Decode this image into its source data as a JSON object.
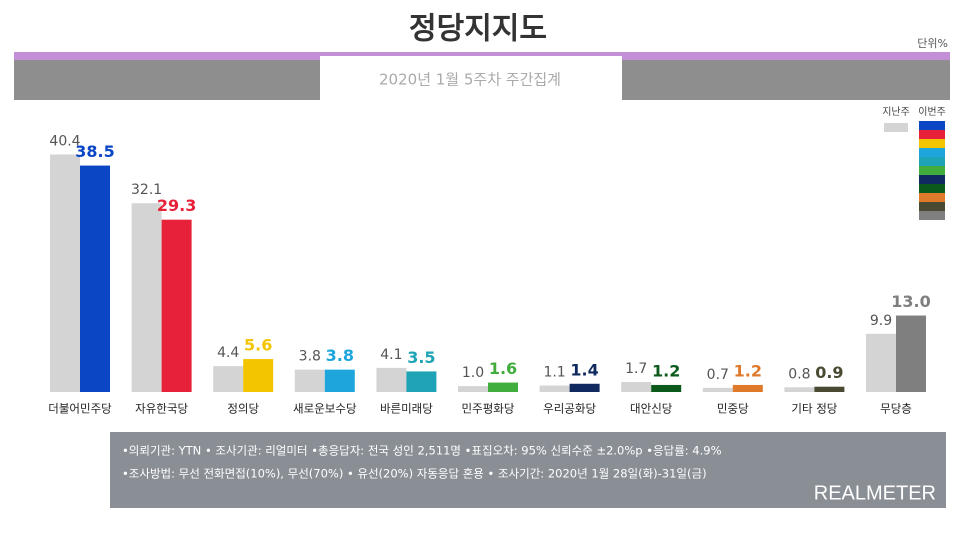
{
  "chart_data": {
    "type": "bar",
    "title": "정당지지도",
    "subtitle": "2020년 1월 5주차 주간집계",
    "unit": "단위%",
    "categories": [
      "더불어민주당",
      "자유한국당",
      "정의당",
      "새로운보수당",
      "바른미래당",
      "민주평화당",
      "우리공화당",
      "대안신당",
      "민중당",
      "기타 정당",
      "무당층"
    ],
    "series": [
      {
        "name": "지난주",
        "color": "#d4d4d4",
        "values": [
          40.4,
          32.1,
          4.4,
          3.8,
          4.1,
          1.0,
          1.1,
          1.7,
          0.7,
          0.8,
          9.9
        ],
        "value_labels": [
          "40.4",
          "32.1",
          "4.4",
          "3.8",
          "4.1",
          "1.0",
          "1.1",
          "1.7",
          "0.7",
          "0.8",
          "9.9"
        ]
      },
      {
        "name": "이번주",
        "colors": [
          "#0b47c4",
          "#e8213a",
          "#f2c500",
          "#1ea6dc",
          "#1fa3b6",
          "#40ad3c",
          "#10295e",
          "#0b5a1b",
          "#e07a2a",
          "#4a4a32",
          "#7f7f7f"
        ],
        "values": [
          38.5,
          29.3,
          5.6,
          3.8,
          3.5,
          1.6,
          1.4,
          1.2,
          1.2,
          0.9,
          13.0
        ],
        "value_labels": [
          "38.5",
          "29.3",
          "5.6",
          "3.8",
          "3.5",
          "1.6",
          "1.4",
          "1.2",
          "1.2",
          "0.9",
          "13.0"
        ]
      }
    ],
    "ylim": [
      0,
      42
    ],
    "footnotes": [
      "•의뢰기관: YTN • 조사기관: 리얼미터 •총응답자: 전국 성인 2,511명 •표집오차: 95% 신뢰수준 ±2.0%p •응답률: 4.9%",
      "•조사방법: 무선 전화면접(10%), 무선(70%) • 유선(20%) 자동응답 혼용 • 조사기간: 2020년 1월 28일(화)-31일(금)"
    ],
    "logo": "REALMETER"
  }
}
